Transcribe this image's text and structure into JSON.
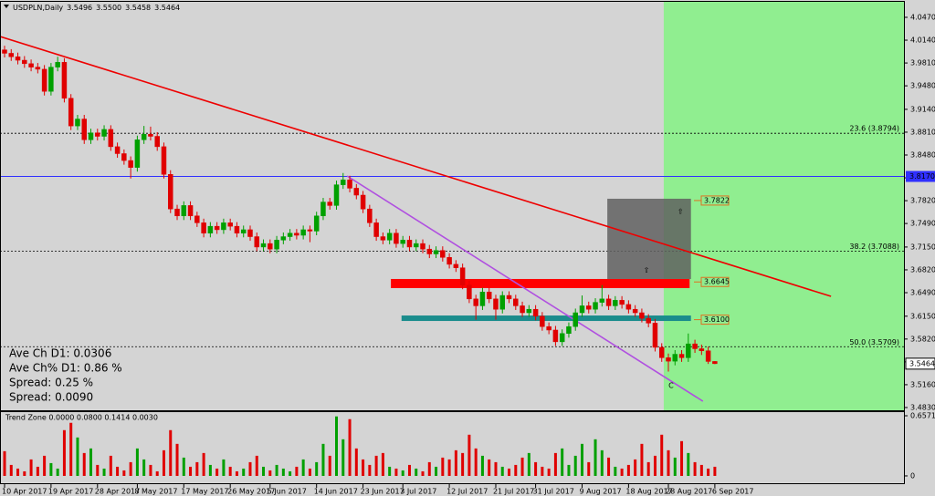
{
  "chart_data": {
    "type": "candlestick",
    "title": "USDPLN,Daily",
    "title_values": [
      "3.5496",
      "3.5500",
      "3.5458",
      "3.5464"
    ],
    "categories": [
      "10 Apr 2017",
      null,
      null,
      null,
      null,
      null,
      null,
      "19 Apr 2017",
      null,
      null,
      null,
      null,
      null,
      null,
      "28 Apr 2017",
      null,
      null,
      null,
      null,
      null,
      "8 May 2017",
      null,
      null,
      null,
      null,
      null,
      null,
      "17 May 2017",
      null,
      null,
      null,
      null,
      null,
      null,
      "26 May 2017",
      null,
      null,
      null,
      null,
      null,
      "5 Jun 2017",
      null,
      null,
      null,
      null,
      null,
      null,
      "14 Jun 2017",
      null,
      null,
      null,
      null,
      null,
      null,
      "23 Jun 2017",
      null,
      null,
      null,
      null,
      null,
      "3 Jul 2017",
      null,
      null,
      null,
      null,
      null,
      null,
      "12 Jul 2017",
      null,
      null,
      null,
      null,
      null,
      null,
      "21 Jul 2017",
      null,
      null,
      null,
      null,
      null,
      "31 Jul 2017",
      null,
      null,
      null,
      null,
      null,
      null,
      "9 Aug 2017",
      null,
      null,
      null,
      null,
      null,
      null,
      "18 Aug 2017",
      null,
      null,
      null,
      null,
      null,
      "28 Aug 2017",
      null,
      null,
      null,
      null,
      null,
      null,
      "6 Sep 2017"
    ],
    "ohlc": [
      [
        4.0,
        4.006,
        3.989,
        3.995
      ],
      [
        3.995,
        4.001,
        3.984,
        3.99
      ],
      [
        3.99,
        3.996,
        3.979,
        3.985
      ],
      [
        3.985,
        3.991,
        3.974,
        3.98
      ],
      [
        3.98,
        3.986,
        3.969,
        3.975
      ],
      [
        3.975,
        3.981,
        3.966,
        3.972
      ],
      [
        3.972,
        3.978,
        3.934,
        3.94
      ],
      [
        3.94,
        3.981,
        3.934,
        3.975
      ],
      [
        3.975,
        3.99,
        3.969,
        3.982
      ],
      [
        3.982,
        3.988,
        3.924,
        3.93
      ],
      [
        3.93,
        3.936,
        3.884,
        3.89
      ],
      [
        3.89,
        3.906,
        3.884,
        3.9
      ],
      [
        3.9,
        3.906,
        3.864,
        3.87
      ],
      [
        3.87,
        3.886,
        3.864,
        3.88
      ],
      [
        3.88,
        3.886,
        3.869,
        3.875
      ],
      [
        3.875,
        3.891,
        3.869,
        3.885
      ],
      [
        3.885,
        3.891,
        3.854,
        3.86
      ],
      [
        3.86,
        3.866,
        3.844,
        3.85
      ],
      [
        3.85,
        3.856,
        3.834,
        3.84
      ],
      [
        3.84,
        3.846,
        3.814,
        3.83
      ],
      [
        3.83,
        3.876,
        3.824,
        3.87
      ],
      [
        3.87,
        3.89,
        3.864,
        3.878
      ],
      [
        3.878,
        3.889,
        3.869,
        3.875
      ],
      [
        3.875,
        3.881,
        3.854,
        3.86
      ],
      [
        3.86,
        3.866,
        3.814,
        3.82
      ],
      [
        3.82,
        3.826,
        3.764,
        3.77
      ],
      [
        3.77,
        3.776,
        3.754,
        3.76
      ],
      [
        3.76,
        3.781,
        3.754,
        3.775
      ],
      [
        3.775,
        3.781,
        3.754,
        3.76
      ],
      [
        3.76,
        3.766,
        3.744,
        3.75
      ],
      [
        3.75,
        3.756,
        3.729,
        3.735
      ],
      [
        3.735,
        3.751,
        3.729,
        3.745
      ],
      [
        3.745,
        3.751,
        3.734,
        3.74
      ],
      [
        3.74,
        3.756,
        3.734,
        3.75
      ],
      [
        3.75,
        3.756,
        3.739,
        3.745
      ],
      [
        3.745,
        3.751,
        3.729,
        3.735
      ],
      [
        3.735,
        3.746,
        3.729,
        3.74
      ],
      [
        3.74,
        3.746,
        3.724,
        3.73
      ],
      [
        3.73,
        3.736,
        3.709,
        3.715
      ],
      [
        3.715,
        3.726,
        3.709,
        3.72
      ],
      [
        3.72,
        3.726,
        3.706,
        3.712
      ],
      [
        3.712,
        3.731,
        3.706,
        3.725
      ],
      [
        3.725,
        3.736,
        3.719,
        3.73
      ],
      [
        3.73,
        3.741,
        3.724,
        3.735
      ],
      [
        3.735,
        3.741,
        3.726,
        3.732
      ],
      [
        3.732,
        3.746,
        3.726,
        3.74
      ],
      [
        3.74,
        3.746,
        3.722,
        3.738
      ],
      [
        3.738,
        3.766,
        3.732,
        3.76
      ],
      [
        3.76,
        3.786,
        3.754,
        3.78
      ],
      [
        3.78,
        3.786,
        3.769,
        3.775
      ],
      [
        3.775,
        3.811,
        3.769,
        3.805
      ],
      [
        3.805,
        3.822,
        3.799,
        3.812
      ],
      [
        3.812,
        3.818,
        3.794,
        3.8
      ],
      [
        3.8,
        3.806,
        3.784,
        3.79
      ],
      [
        3.79,
        3.796,
        3.764,
        3.77
      ],
      [
        3.77,
        3.776,
        3.744,
        3.75
      ],
      [
        3.75,
        3.756,
        3.724,
        3.73
      ],
      [
        3.73,
        3.736,
        3.719,
        3.725
      ],
      [
        3.725,
        3.741,
        3.719,
        3.735
      ],
      [
        3.735,
        3.741,
        3.714,
        3.72
      ],
      [
        3.72,
        3.731,
        3.714,
        3.725
      ],
      [
        3.725,
        3.731,
        3.709,
        3.715
      ],
      [
        3.715,
        3.726,
        3.709,
        3.72
      ],
      [
        3.72,
        3.726,
        3.706,
        3.712
      ],
      [
        3.712,
        3.718,
        3.699,
        3.705
      ],
      [
        3.705,
        3.716,
        3.699,
        3.71
      ],
      [
        3.71,
        3.716,
        3.694,
        3.7
      ],
      [
        3.7,
        3.706,
        3.684,
        3.69
      ],
      [
        3.69,
        3.696,
        3.679,
        3.685
      ],
      [
        3.685,
        3.691,
        3.654,
        3.66
      ],
      [
        3.66,
        3.666,
        3.634,
        3.64
      ],
      [
        3.64,
        3.646,
        3.61,
        3.63
      ],
      [
        3.63,
        3.656,
        3.624,
        3.65
      ],
      [
        3.65,
        3.656,
        3.634,
        3.64
      ],
      [
        3.64,
        3.646,
        3.61,
        3.625
      ],
      [
        3.625,
        3.651,
        3.619,
        3.645
      ],
      [
        3.645,
        3.651,
        3.634,
        3.64
      ],
      [
        3.64,
        3.646,
        3.624,
        3.63
      ],
      [
        3.63,
        3.636,
        3.614,
        3.62
      ],
      [
        3.62,
        3.631,
        3.614,
        3.625
      ],
      [
        3.625,
        3.631,
        3.609,
        3.615
      ],
      [
        3.615,
        3.621,
        3.594,
        3.6
      ],
      [
        3.6,
        3.606,
        3.589,
        3.595
      ],
      [
        3.595,
        3.601,
        3.572,
        3.578
      ],
      [
        3.578,
        3.596,
        3.572,
        3.59
      ],
      [
        3.59,
        3.606,
        3.584,
        3.6
      ],
      [
        3.6,
        3.626,
        3.594,
        3.62
      ],
      [
        3.62,
        3.645,
        3.614,
        3.63
      ],
      [
        3.63,
        3.636,
        3.619,
        3.625
      ],
      [
        3.625,
        3.641,
        3.619,
        3.635
      ],
      [
        3.635,
        3.66,
        3.629,
        3.64
      ],
      [
        3.64,
        3.646,
        3.624,
        3.63
      ],
      [
        3.63,
        3.644,
        3.624,
        3.638
      ],
      [
        3.638,
        3.644,
        3.626,
        3.632
      ],
      [
        3.632,
        3.638,
        3.619,
        3.625
      ],
      [
        3.625,
        3.631,
        3.614,
        3.62
      ],
      [
        3.62,
        3.626,
        3.606,
        3.612
      ],
      [
        3.612,
        3.618,
        3.599,
        3.605
      ],
      [
        3.605,
        3.611,
        3.564,
        3.57
      ],
      [
        3.57,
        3.576,
        3.549,
        3.555
      ],
      [
        3.555,
        3.561,
        3.535,
        3.55
      ],
      [
        3.55,
        3.566,
        3.544,
        3.56
      ],
      [
        3.56,
        3.566,
        3.549,
        3.555
      ],
      [
        3.555,
        3.59,
        3.549,
        3.575
      ],
      [
        3.575,
        3.581,
        3.562,
        3.568
      ],
      [
        3.568,
        3.574,
        3.559,
        3.565
      ],
      [
        3.565,
        3.571,
        3.546,
        3.5496
      ],
      [
        3.5496,
        3.55,
        3.5458,
        3.5464
      ]
    ],
    "up_color": "#00a000",
    "down_color": "#e00000",
    "ylim": [
      3.479,
      4.0694
    ],
    "yticks": [
      {
        "value": 4.047,
        "label": "4.0470"
      },
      {
        "value": 4.014,
        "label": "4.0140"
      },
      {
        "value": 3.981,
        "label": "3.9810"
      },
      {
        "value": 3.948,
        "label": "3.9480"
      },
      {
        "value": 3.914,
        "label": "3.9140"
      },
      {
        "value": 3.881,
        "label": "3.8810"
      },
      {
        "value": 3.848,
        "label": "3.8480"
      },
      {
        "value": 3.815,
        "label": "3.8150"
      },
      {
        "value": 3.782,
        "label": "3.7820"
      },
      {
        "value": 3.749,
        "label": "3.7490"
      },
      {
        "value": 3.715,
        "label": "3.7150"
      },
      {
        "value": 3.682,
        "label": "3.6820"
      },
      {
        "value": 3.649,
        "label": "3.6490"
      },
      {
        "value": 3.615,
        "label": "3.6150"
      },
      {
        "value": 3.582,
        "label": "3.5820"
      },
      {
        "value": 3.549,
        "label": "3.5490"
      },
      {
        "value": 3.516,
        "label": "3.5160"
      },
      {
        "value": 3.483,
        "label": "3.4830"
      }
    ],
    "highlight_from": 99.3,
    "highlight_color": "#90ee90",
    "level": {
      "value": 3.817,
      "label": "3.8170",
      "color": "#3030ff"
    },
    "current_price": {
      "value": 3.5464,
      "label": "3.5464"
    },
    "fib_levels": [
      {
        "value": 3.8794,
        "label": "23.6  (3.8794)"
      },
      {
        "value": 3.7088,
        "label": "38.2  (3.7088)"
      },
      {
        "value": 3.5709,
        "label": "50.0  (3.5709)"
      }
    ],
    "zones": [
      {
        "color": "#606060",
        "x": [
          90.8,
          103.4
        ],
        "y": [
          3.6688,
          3.7848
        ]
      },
      {
        "color": "#ff0000",
        "x": [
          58.2,
          103.2
        ],
        "y": [
          3.6556,
          3.6688
        ]
      },
      {
        "color": "#1a8c8c",
        "x": [
          59.8,
          103.4
        ],
        "y": [
          3.6081,
          3.616
        ]
      }
    ],
    "trendlines": [
      {
        "color": "#ee0000",
        "points": [
          [
            -0.69,
            4.0193
          ],
          [
            124.5,
            3.6437
          ]
        ]
      },
      {
        "color": "#b050e0",
        "points": [
          [
            51.6,
            3.8177
          ],
          [
            105.2,
            3.4921
          ]
        ]
      }
    ],
    "marker_labels": [
      {
        "value": 3.7822,
        "label": "3.7822"
      },
      {
        "value": 3.6645,
        "label": "3.6645"
      },
      {
        "value": 3.61,
        "label": "3.6100"
      }
    ],
    "arrows": [
      {
        "text": "⇧",
        "x": 101.8,
        "y": 3.766
      },
      {
        "text": "⇧",
        "x": 96.7,
        "y": 3.681
      }
    ],
    "wave_label": {
      "text": "C",
      "x": 100.4,
      "y": 3.5145
    },
    "stats": [
      {
        "text": "Ave Ch D1: 0.0306",
        "color": "#c0702a"
      },
      {
        "text": "Ave Ch% D1: 0.86 %",
        "color": "#2e8b2e"
      },
      {
        "text": "Spread: 0.25 %",
        "color": "#9040e0"
      },
      {
        "text": "Spread: 0.0090",
        "color": "#ee0000"
      }
    ],
    "indicator": {
      "title": "Trend Zone 0.0000 0.0800 0.1414 0.0030",
      "values": [
        0.27,
        0.12,
        0.08,
        0.05,
        0.18,
        0.1,
        0.22,
        0.14,
        0.08,
        0.5,
        0.58,
        0.42,
        0.25,
        0.3,
        0.12,
        0.08,
        0.22,
        0.1,
        0.06,
        0.15,
        0.3,
        0.18,
        0.12,
        0.05,
        0.28,
        0.5,
        0.35,
        0.2,
        0.1,
        0.15,
        0.25,
        0.12,
        0.08,
        0.18,
        0.1,
        0.05,
        0.08,
        0.15,
        0.22,
        0.1,
        0.06,
        0.12,
        0.08,
        0.05,
        0.1,
        0.18,
        0.08,
        0.15,
        0.35,
        0.22,
        0.65,
        0.4,
        0.62,
        0.3,
        0.18,
        0.12,
        0.22,
        0.25,
        0.1,
        0.08,
        0.06,
        0.12,
        0.08,
        0.05,
        0.15,
        0.1,
        0.2,
        0.18,
        0.28,
        0.25,
        0.45,
        0.3,
        0.22,
        0.18,
        0.15,
        0.1,
        0.08,
        0.12,
        0.2,
        0.25,
        0.15,
        0.1,
        0.08,
        0.25,
        0.3,
        0.12,
        0.22,
        0.35,
        0.15,
        0.4,
        0.28,
        0.2,
        0.1,
        0.08,
        0.12,
        0.18,
        0.35,
        0.15,
        0.22,
        0.45,
        0.28,
        0.2,
        0.38,
        0.25,
        0.15,
        0.12,
        0.08,
        0.1
      ],
      "ylim": [
        -0.09,
        0.707
      ],
      "yticks": [
        {
          "value": 0.6571,
          "label": "0.6571"
        },
        0
      ]
    }
  }
}
